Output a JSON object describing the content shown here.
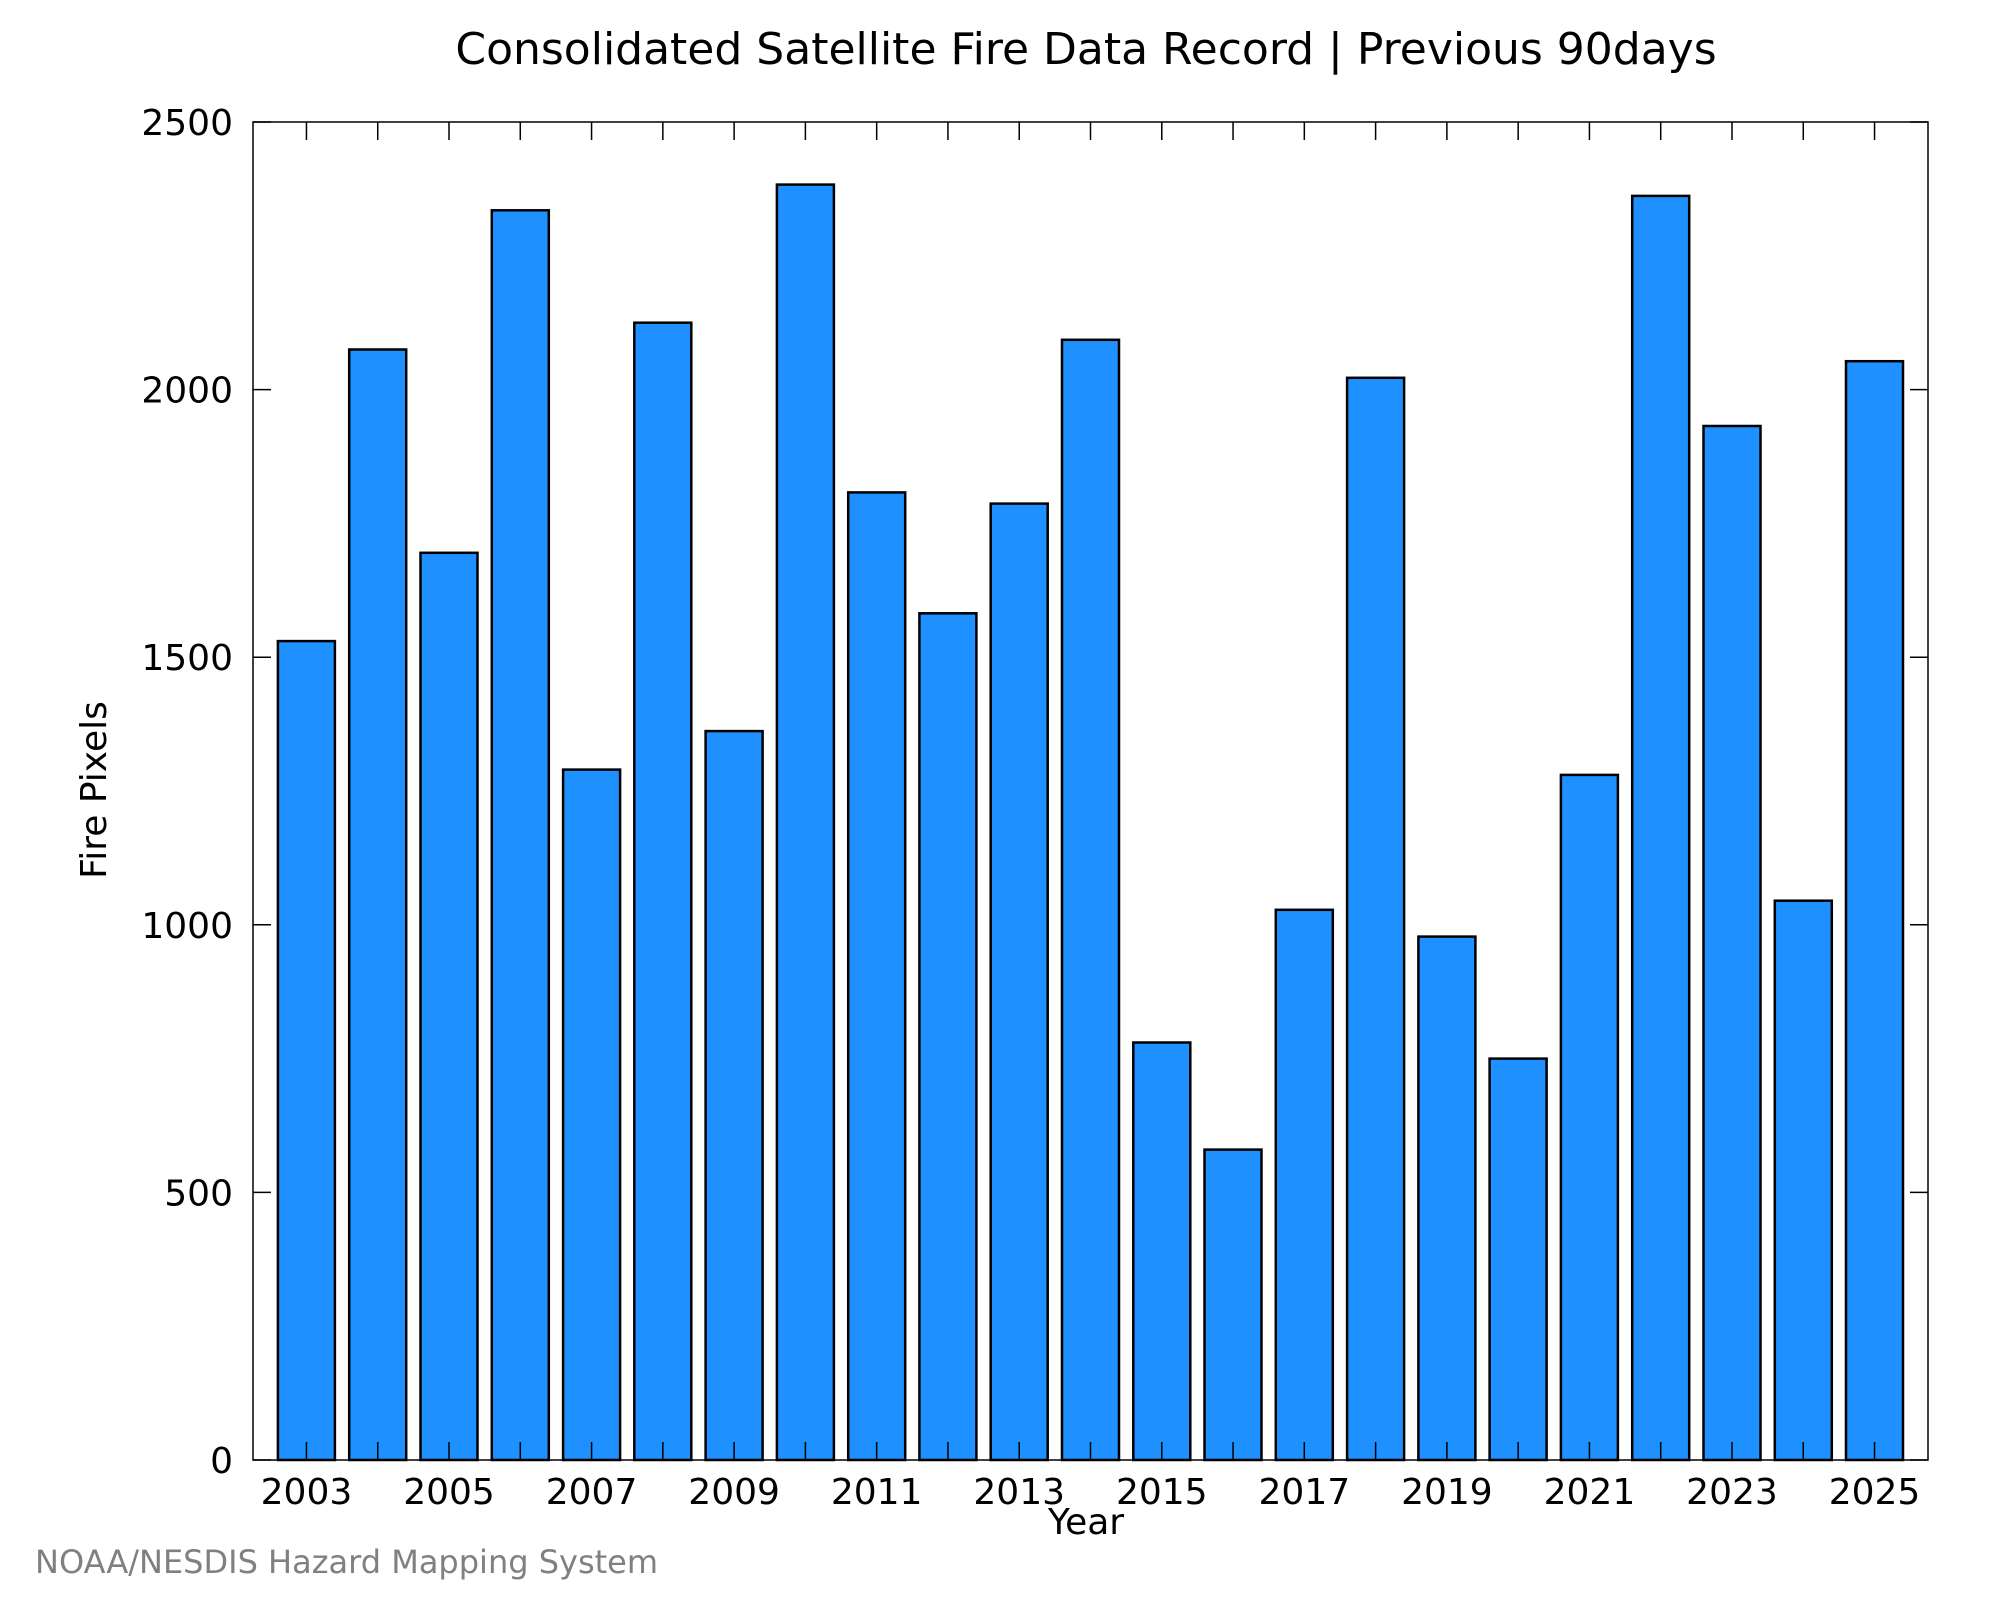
{
  "chart_data": {
    "type": "bar",
    "title": "Consolidated Satellite Fire Data Record | Previous 90days",
    "xlabel": "Year",
    "ylabel": "Fire Pixels",
    "categories": [
      "2003",
      "2004",
      "2005",
      "2006",
      "2007",
      "2008",
      "2009",
      "2010",
      "2011",
      "2012",
      "2013",
      "2014",
      "2015",
      "2016",
      "2017",
      "2018",
      "2019",
      "2020",
      "2021",
      "2022",
      "2023",
      "2024",
      "2025"
    ],
    "values": [
      1530,
      2075,
      1695,
      2335,
      1290,
      2125,
      1362,
      2383,
      1808,
      1582,
      1787,
      2093,
      780,
      580,
      1028,
      2022,
      978,
      750,
      1280,
      2362,
      1932,
      1045,
      2053
    ],
    "xticks": [
      "2003",
      "2005",
      "2007",
      "2009",
      "2011",
      "2013",
      "2015",
      "2017",
      "2019",
      "2021",
      "2023",
      "2025"
    ],
    "yticks": [
      0,
      500,
      1000,
      1500,
      2000,
      2500
    ],
    "ylim": [
      0,
      2500
    ],
    "bar_color": "#1e90ff",
    "grid": false,
    "legend": "none"
  },
  "footer": "NOAA/NESDIS Hazard Mapping System"
}
